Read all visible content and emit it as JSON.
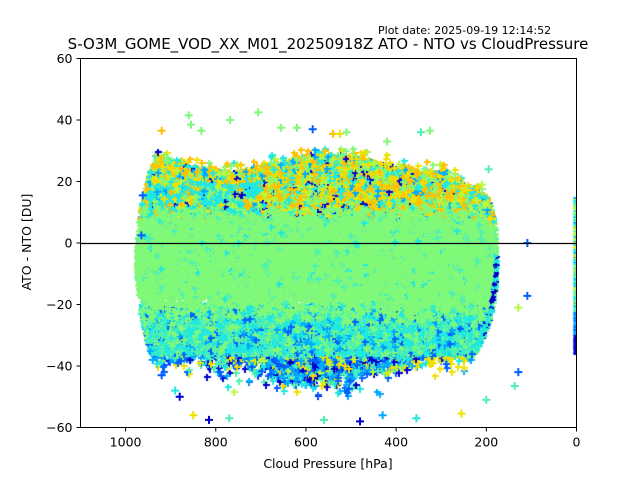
{
  "header": {
    "plot_date": "Plot date: 2025-09-19 12:14:52"
  },
  "chart_data": {
    "type": "scatter",
    "title": "S-O3M_GOME_VOD_XX_M01_20250918Z ATO - NTO vs CloudPressure",
    "xlabel": "Cloud Pressure [hPa]",
    "ylabel": "ATO - NTO [DU]",
    "xlim": [
      1100,
      0
    ],
    "ylim": [
      -60,
      60
    ],
    "x_inverted": true,
    "xticks": [
      1000,
      800,
      600,
      400,
      200,
      0
    ],
    "xtick_labels": [
      "1000",
      "800",
      "600",
      "400",
      "200",
      "0"
    ],
    "yticks": [
      60,
      40,
      20,
      0,
      -20,
      -40,
      -60
    ],
    "ytick_labels": [
      "60",
      "40",
      "20",
      "0",
      "−20",
      "−40",
      "−60"
    ],
    "reference_line": {
      "y": 0,
      "color": "#000000"
    },
    "marker": "+",
    "grid": false,
    "legend": "none",
    "colormap": [
      "#0000cc",
      "#0060ff",
      "#00a8ff",
      "#20e8e0",
      "#50f0b0",
      "#80f878",
      "#b8f840",
      "#f0e000",
      "#ffc000"
    ],
    "main_cloud": {
      "pressure_range": [
        975,
        175
      ],
      "core_mean_du": -6,
      "upper_band_du": [
        10,
        28
      ],
      "lower_band_du": [
        -22,
        -55
      ],
      "dominant_color": "#80f878"
    },
    "zero_pressure_strip": {
      "pressure": 0,
      "du_range": [
        -36,
        15
      ]
    },
    "outliers": [
      {
        "x": 860,
        "y": 41.5,
        "c": "#80f878"
      },
      {
        "x": 855,
        "y": 38.5,
        "c": "#80f878"
      },
      {
        "x": 832,
        "y": 36.5,
        "c": "#80f878"
      },
      {
        "x": 768,
        "y": 40.0,
        "c": "#80f878"
      },
      {
        "x": 706,
        "y": 42.5,
        "c": "#80f878"
      },
      {
        "x": 655,
        "y": 37.5,
        "c": "#80f878"
      },
      {
        "x": 620,
        "y": 37.5,
        "c": "#80f878"
      },
      {
        "x": 585,
        "y": 37.0,
        "c": "#0060ff"
      },
      {
        "x": 540,
        "y": 35.5,
        "c": "#ffc000"
      },
      {
        "x": 525,
        "y": 35.5,
        "c": "#f0e000"
      },
      {
        "x": 510,
        "y": 36.0,
        "c": "#80f878"
      },
      {
        "x": 420,
        "y": 33.0,
        "c": "#80f878"
      },
      {
        "x": 345,
        "y": 36.0,
        "c": "#50f0b0"
      },
      {
        "x": 325,
        "y": 36.5,
        "c": "#80f878"
      },
      {
        "x": 920,
        "y": 36.5,
        "c": "#ffc000"
      },
      {
        "x": 962,
        "y": 15.5,
        "c": "#0060ff"
      },
      {
        "x": 965,
        "y": 2.5,
        "c": "#0060ff"
      },
      {
        "x": 195,
        "y": 24.0,
        "c": "#50f0b0"
      },
      {
        "x": 210,
        "y": 19.0,
        "c": "#b8f840"
      },
      {
        "x": 109,
        "y": 0.0,
        "c": "#0060ff"
      },
      {
        "x": 109,
        "y": -17.2,
        "c": "#0060ff"
      },
      {
        "x": 129,
        "y": -21.0,
        "c": "#b8f840"
      },
      {
        "x": 129,
        "y": -42.0,
        "c": "#0060ff"
      },
      {
        "x": 137,
        "y": -46.5,
        "c": "#50f0b0"
      },
      {
        "x": 200,
        "y": -51.0,
        "c": "#50f0b0"
      },
      {
        "x": 255,
        "y": -55.5,
        "c": "#f0e000"
      },
      {
        "x": 850,
        "y": -56.0,
        "c": "#f0e000"
      },
      {
        "x": 815,
        "y": -57.5,
        "c": "#0000cc"
      },
      {
        "x": 770,
        "y": -57.0,
        "c": "#50f0b0"
      },
      {
        "x": 560,
        "y": -57.5,
        "c": "#50f0b0"
      },
      {
        "x": 480,
        "y": -58.0,
        "c": "#0000cc"
      },
      {
        "x": 430,
        "y": -56.0,
        "c": "#00a8ff"
      },
      {
        "x": 355,
        "y": -57.0,
        "c": "#20e8e0"
      },
      {
        "x": 890,
        "y": -48.0,
        "c": "#20e8e0"
      },
      {
        "x": 880,
        "y": -50.0,
        "c": "#0000cc"
      },
      {
        "x": 920,
        "y": -43.0,
        "c": "#0060ff"
      },
      {
        "x": 940,
        "y": -38.0,
        "c": "#00a8ff"
      }
    ]
  }
}
